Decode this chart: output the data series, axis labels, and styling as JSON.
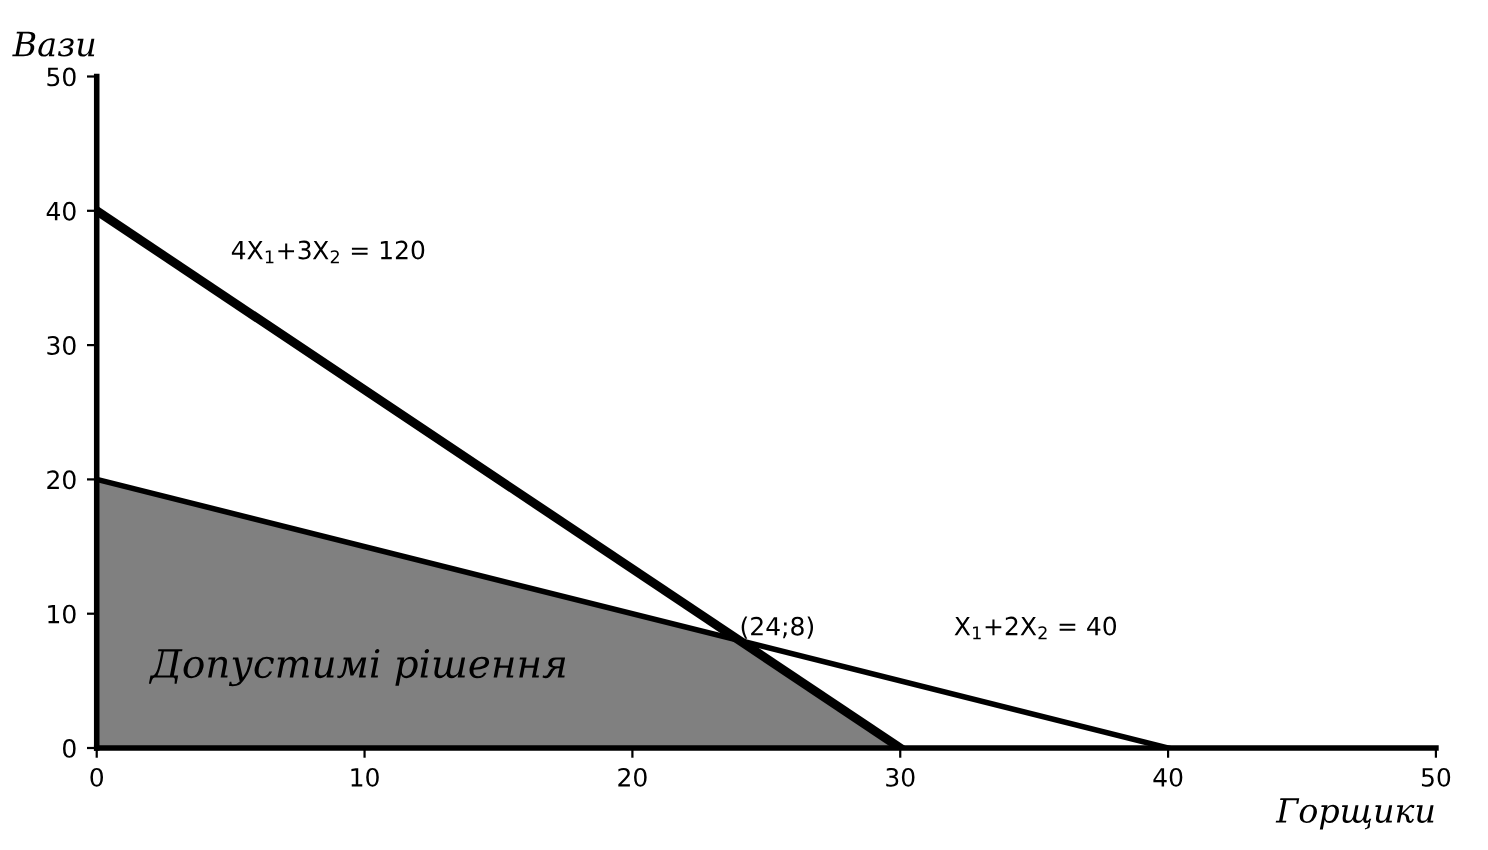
{
  "chart_data": {
    "type": "line",
    "xlabel": "Горщики",
    "ylabel": "Вази",
    "xlim": [
      0,
      50
    ],
    "ylim": [
      0,
      50
    ],
    "xticks": [
      0,
      10,
      20,
      30,
      40,
      50
    ],
    "yticks": [
      0,
      10,
      20,
      30,
      40,
      50
    ],
    "grid": false,
    "legend": false,
    "series": [
      {
        "type": "area",
        "color": "#808080",
        "x": [
          0,
          0,
          24,
          30
        ],
        "values": [
          0,
          20,
          8,
          0
        ]
      },
      {
        "color": "#000000",
        "x": [
          0,
          30
        ],
        "values": [
          40,
          0
        ]
      },
      {
        "color": "#000000",
        "x": [
          0,
          40
        ],
        "values": [
          20,
          0
        ]
      }
    ],
    "annotations": [
      "4X$_{1}$+3X$_{2}$ = 120",
      "X$_{1}$+2X$_{2}$ = 40",
      {
        "text": "(24;8)",
        "x": 24,
        "y": 8
      },
      "Допустимі рішення"
    ]
  }
}
